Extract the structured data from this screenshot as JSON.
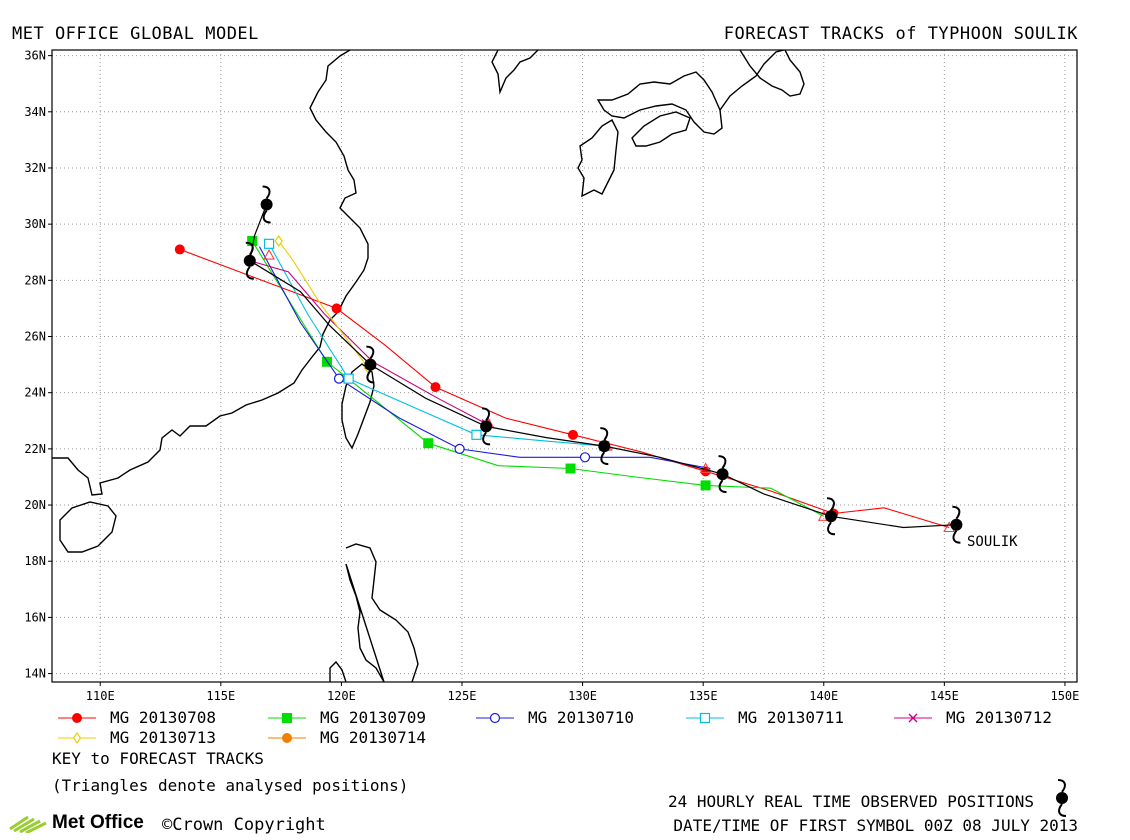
{
  "header": {
    "left": "MET OFFICE GLOBAL MODEL",
    "right": "FORECAST TRACKS of TYPHOON SOULIK"
  },
  "map": {
    "lon_range": [
      108,
      150.5
    ],
    "lat_range": [
      13.7,
      36.2
    ],
    "lon_ticks": [
      "110E",
      "115E",
      "120E",
      "125E",
      "130E",
      "135E",
      "140E",
      "145E",
      "150E"
    ],
    "lon_tick_values": [
      110,
      115,
      120,
      125,
      130,
      135,
      140,
      145,
      150
    ],
    "lat_ticks": [
      "14N",
      "16N",
      "18N",
      "20N",
      "22N",
      "24N",
      "26N",
      "28N",
      "30N",
      "32N",
      "34N",
      "36N"
    ],
    "lat_tick_values": [
      14,
      16,
      18,
      20,
      22,
      24,
      26,
      28,
      30,
      32,
      34,
      36
    ],
    "storm_label": "SOULIK",
    "grid": true
  },
  "chart_data": {
    "type": "scatter",
    "observed_track": {
      "points": [
        [
          145.5,
          19.3
        ],
        [
          143.3,
          19.2
        ],
        [
          140.3,
          19.6
        ],
        [
          137.5,
          20.4
        ],
        [
          135.8,
          21.1
        ],
        [
          133.2,
          21.7
        ],
        [
          130.9,
          22.1
        ],
        [
          128.5,
          22.4
        ],
        [
          126.0,
          22.8
        ],
        [
          123.5,
          23.8
        ],
        [
          121.2,
          25.0
        ],
        [
          119.5,
          26.4
        ],
        [
          118.3,
          27.6
        ],
        [
          116.2,
          28.7
        ],
        [
          116.4,
          29.6
        ],
        [
          116.9,
          30.7
        ]
      ],
      "symbols": [
        [
          145.5,
          19.3
        ],
        [
          140.3,
          19.6
        ],
        [
          135.8,
          21.1
        ],
        [
          130.9,
          22.1
        ],
        [
          126.0,
          22.8
        ],
        [
          121.2,
          25.0
        ],
        [
          116.2,
          28.7
        ],
        [
          116.9,
          30.7
        ]
      ]
    },
    "series": [
      {
        "name": "MG 20130708",
        "color": "#ff0000",
        "marker": "filled-circle",
        "points": [
          [
            145.2,
            19.2
          ],
          [
            142.5,
            19.9
          ],
          [
            140.4,
            19.7
          ],
          [
            137.8,
            20.5
          ],
          [
            135.1,
            21.2
          ],
          [
            132.4,
            21.9
          ],
          [
            129.6,
            22.5
          ],
          [
            126.8,
            23.1
          ],
          [
            123.9,
            24.2
          ],
          [
            121.8,
            25.7
          ],
          [
            119.8,
            27.0
          ],
          [
            113.3,
            29.1
          ]
        ],
        "markers": [
          [
            140.4,
            19.7
          ],
          [
            135.1,
            21.2
          ],
          [
            129.6,
            22.5
          ],
          [
            123.9,
            24.2
          ],
          [
            119.8,
            27.0
          ],
          [
            113.3,
            29.1
          ]
        ]
      },
      {
        "name": "MG 20130709",
        "color": "#00dd00",
        "marker": "filled-square",
        "points": [
          [
            140.0,
            19.6
          ],
          [
            137.8,
            20.6
          ],
          [
            135.1,
            20.7
          ],
          [
            132.2,
            21.0
          ],
          [
            129.5,
            21.3
          ],
          [
            126.5,
            21.4
          ],
          [
            123.6,
            22.2
          ],
          [
            121.3,
            23.8
          ],
          [
            119.4,
            25.1
          ],
          [
            117.3,
            28.0
          ],
          [
            116.3,
            29.4
          ]
        ],
        "markers": [
          [
            135.1,
            20.7
          ],
          [
            129.5,
            21.3
          ],
          [
            123.6,
            22.2
          ],
          [
            119.4,
            25.1
          ],
          [
            116.3,
            29.4
          ]
        ]
      },
      {
        "name": "MG 20130710",
        "color": "#1c1cdd",
        "marker": "open-circle",
        "points": [
          [
            135.3,
            21.3
          ],
          [
            132.8,
            21.7
          ],
          [
            130.1,
            21.7
          ],
          [
            127.4,
            21.7
          ],
          [
            124.9,
            22.0
          ],
          [
            122.4,
            23.1
          ],
          [
            119.9,
            24.5
          ],
          [
            118.3,
            26.5
          ],
          [
            116.6,
            29.2
          ]
        ],
        "markers": [
          [
            130.1,
            21.7
          ],
          [
            124.9,
            22.0
          ],
          [
            119.9,
            24.5
          ]
        ]
      },
      {
        "name": "MG 20130711",
        "color": "#00c0e0",
        "marker": "open-square",
        "points": [
          [
            130.9,
            22.1
          ],
          [
            128.2,
            22.3
          ],
          [
            125.6,
            22.5
          ],
          [
            123.2,
            23.4
          ],
          [
            120.3,
            24.5
          ],
          [
            118.6,
            26.8
          ],
          [
            117.0,
            29.3
          ]
        ],
        "markers": [
          [
            130.9,
            22.1
          ],
          [
            125.6,
            22.5
          ],
          [
            120.3,
            24.5
          ],
          [
            117.0,
            29.3
          ]
        ]
      },
      {
        "name": "MG 20130712",
        "color": "#cc0080",
        "marker": "x",
        "points": [
          [
            126.0,
            22.9
          ],
          [
            124.0,
            23.8
          ],
          [
            121.3,
            25.1
          ],
          [
            119.3,
            26.8
          ],
          [
            117.8,
            28.3
          ],
          [
            116.2,
            28.7
          ]
        ],
        "markers": [
          [
            126.0,
            22.9
          ]
        ]
      },
      {
        "name": "MG 20130713",
        "color": "#e8d000",
        "marker": "open-diamond",
        "points": [
          [
            121.1,
            24.9
          ],
          [
            119.1,
            27.2
          ],
          [
            118.0,
            28.7
          ],
          [
            117.4,
            29.4
          ]
        ],
        "markers": [
          [
            121.1,
            24.9
          ],
          [
            117.4,
            29.4
          ]
        ]
      },
      {
        "name": "MG 20130714",
        "color": "#f08000",
        "marker": "filled-circle",
        "points": [],
        "markers": []
      }
    ],
    "analysed_triangles": [
      [
        145.2,
        19.2
      ],
      [
        140.0,
        19.6
      ],
      [
        135.1,
        21.3
      ],
      [
        131.0,
        22.1
      ],
      [
        126.1,
        22.9
      ],
      [
        121.2,
        25.0
      ],
      [
        117.0,
        28.9
      ]
    ]
  },
  "legend": {
    "row1": [
      "MG 20130708",
      "MG 20130709",
      "MG 20130710",
      "MG 20130711",
      "MG 20130712"
    ],
    "row2": [
      "MG 20130713",
      "MG 20130714"
    ]
  },
  "footer": {
    "key_title": "KEY to FORECAST TRACKS",
    "triangles_note": "(Triangles denote analysed positions)",
    "observed_label": "24 HOURLY REAL TIME OBSERVED POSITIONS",
    "first_symbol": "DATE/TIME OF FIRST SYMBOL 00Z 08 JULY 2013",
    "brand": "Met Office",
    "copyright": "©Crown Copyright"
  }
}
